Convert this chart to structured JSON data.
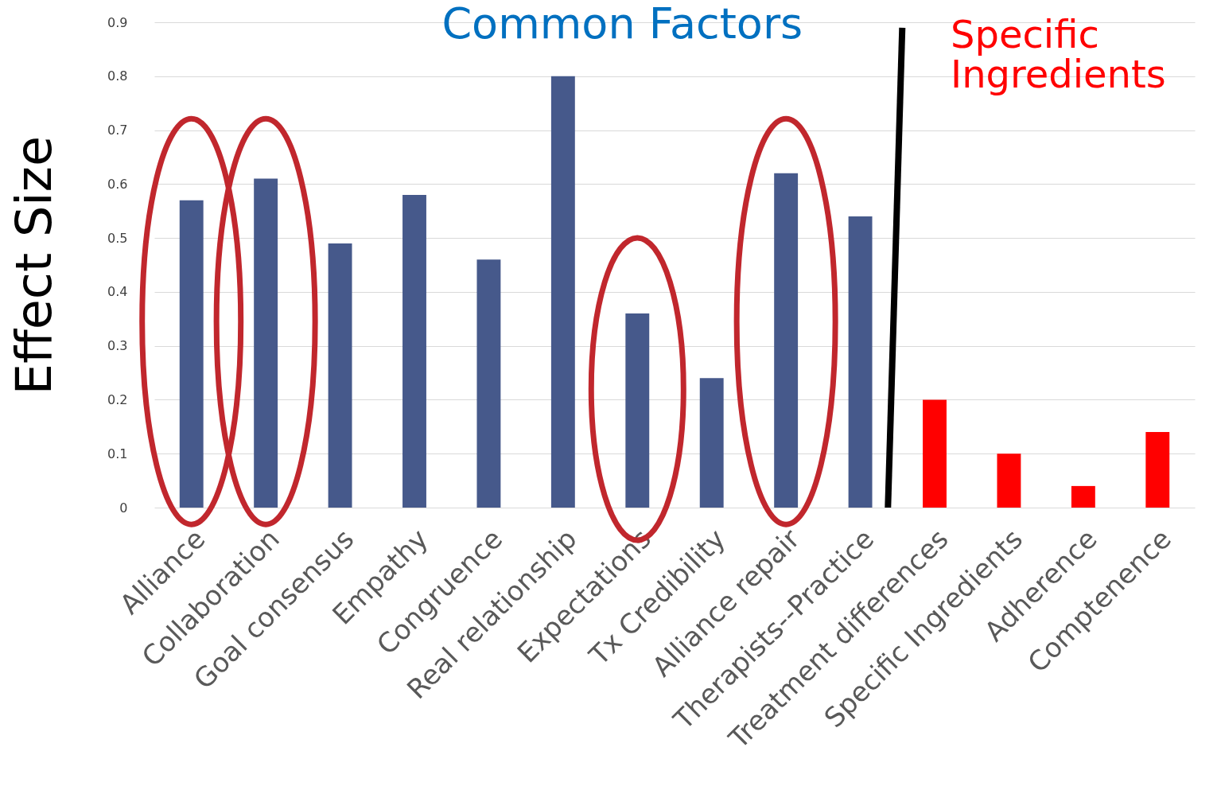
{
  "chart_data": {
    "type": "bar",
    "ylabel": "Effect Size",
    "categories": [
      "Alliance",
      "Collaboration",
      "Goal consensus",
      "Empathy",
      "Congruence",
      "Real relationship",
      "Expectations",
      "Tx Credibility",
      "Alliance repair",
      "Therapists--Practice",
      "Treatment differences",
      "Specific Ingredients",
      "Adherence",
      "Comptenence"
    ],
    "values": [
      0.57,
      0.61,
      0.49,
      0.58,
      0.46,
      0.8,
      0.36,
      0.24,
      0.62,
      0.54,
      0.2,
      0.1,
      0.04,
      0.14
    ],
    "colors": [
      "#46598b",
      "#46598b",
      "#46598b",
      "#46598b",
      "#46598b",
      "#46598b",
      "#46598b",
      "#46598b",
      "#46598b",
      "#46598b",
      "#ff0000",
      "#ff0000",
      "#ff0000",
      "#ff0000"
    ],
    "ylim": [
      0,
      0.9
    ],
    "yticks": [
      0,
      0.1,
      0.2,
      0.3,
      0.4,
      0.5,
      0.6,
      0.7,
      0.8,
      0.9
    ],
    "grid": "y",
    "legend": false,
    "annotations": [
      "Common Factors",
      "Specific Ingredients"
    ]
  }
}
